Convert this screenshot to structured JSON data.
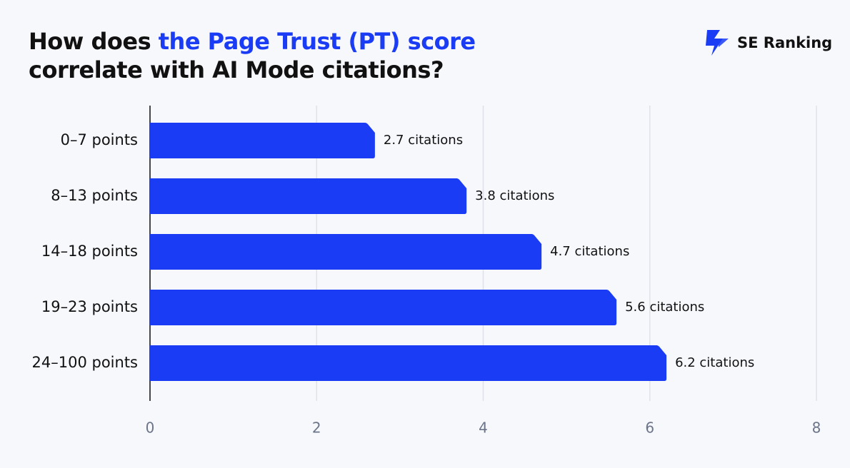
{
  "brand": "SE Ranking",
  "chart_data": {
    "type": "barh",
    "title": [
      {
        "text": "How does "
      },
      {
        "text": "the Page Trust (PT) score",
        "color": "#1a3cf5"
      },
      {
        "text": " correlate with AI Mode citations?"
      }
    ],
    "categories": [
      "0–7 points",
      "8–13 points",
      "14–18 points",
      "19–23 points",
      "24–100 points"
    ],
    "values": [
      2.7,
      3.8,
      4.7,
      5.6,
      6.2
    ],
    "value_labels": [
      "2.7 citations",
      "3.8 citations",
      "4.7 citations",
      "5.6 citations",
      "6.2 citations"
    ],
    "color": "#1a3cf5",
    "xlim": [
      0,
      8
    ],
    "xticks": [
      0,
      2,
      4,
      6,
      8
    ],
    "grid": true
  }
}
